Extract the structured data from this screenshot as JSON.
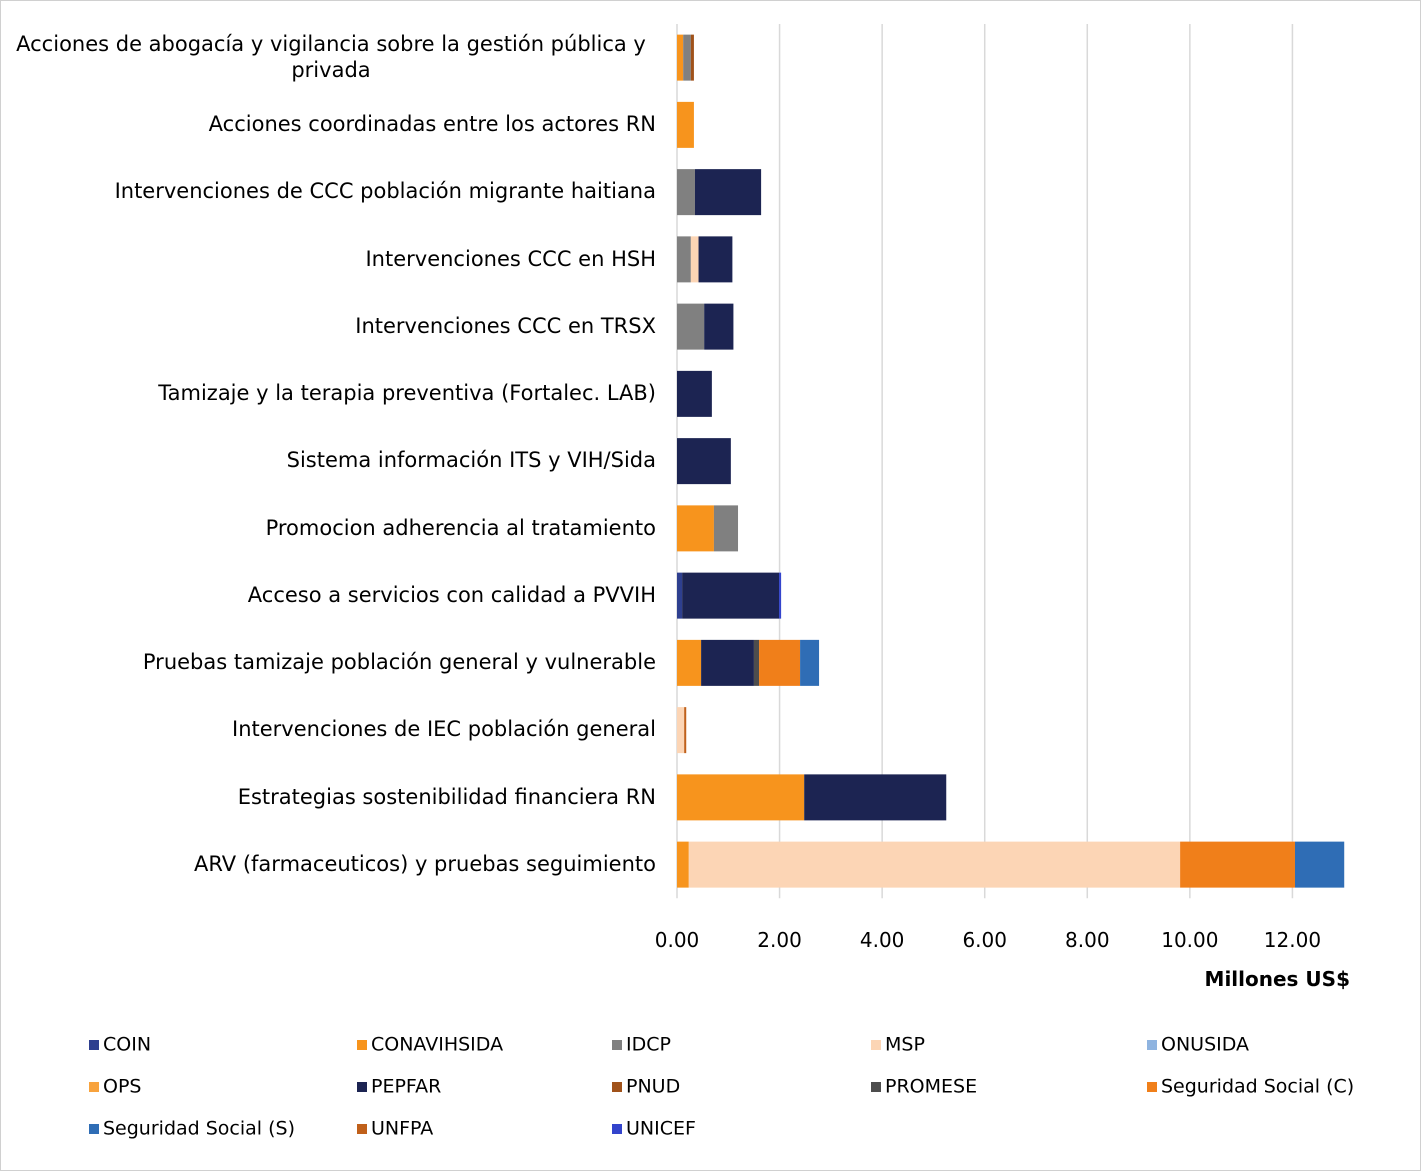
{
  "chart_data": {
    "type": "stacked_barh",
    "categories": [
      "Acciones de  abogacía y vigilancia sobre la gestión pública y privada",
      "Acciones coordinadas entre los actores RN",
      "Intervenciones de  CCC población migrante haitiana",
      "Intervenciones CCC en HSH",
      "Intervenciones CCC  en TRSX",
      "Tamizaje y la terapia preventiva (Fortalec. LAB)",
      "Sistema  información ITS y VIH/Sida",
      "Promocion adherencia al tratamiento",
      "Acceso a servicios con calidad a PVVIH",
      "Pruebas tamizaje población general  y vulnerable",
      "Intervenciones de IEC población general",
      "Estrategias sostenibilidad financiera RN",
      "ARV (farmaceuticos) y pruebas seguimiento"
    ],
    "series": [
      {
        "name": "COIN",
        "color": "#2e3f8f",
        "values": [
          0,
          0,
          0,
          0,
          0,
          0,
          0,
          0,
          0.1,
          0,
          0,
          0,
          0
        ]
      },
      {
        "name": "CONAVIHSIDA",
        "color": "#f7941d",
        "values": [
          0.12,
          0.33,
          0,
          0,
          0,
          0,
          0,
          0.72,
          0,
          0.47,
          0,
          2.48,
          0.23
        ]
      },
      {
        "name": "IDCP",
        "color": "#808080",
        "values": [
          0.15,
          0,
          0.35,
          0.27,
          0.53,
          0,
          0,
          0.47,
          0,
          0,
          0,
          0,
          0
        ]
      },
      {
        "name": "MSP",
        "color": "#fcd5b5",
        "values": [
          0,
          0,
          0,
          0.15,
          0,
          0,
          0,
          0,
          0,
          0,
          0.14,
          0,
          9.58
        ]
      },
      {
        "name": "ONUSIDA",
        "color": "#8fb4e0",
        "values": [
          0,
          0,
          0,
          0,
          0,
          0,
          0,
          0,
          0,
          0,
          0,
          0,
          0
        ]
      },
      {
        "name": "OPS",
        "color": "#f8a33d",
        "values": [
          0,
          0,
          0,
          0,
          0,
          0,
          0,
          0,
          0,
          0,
          0,
          0,
          0
        ]
      },
      {
        "name": "PEPFAR",
        "color": "#1c2452",
        "values": [
          0,
          0,
          1.29,
          0.66,
          0.57,
          0.68,
          1.05,
          0,
          1.89,
          1.03,
          0,
          2.77,
          0
        ]
      },
      {
        "name": "PNUD",
        "color": "#a0521a",
        "values": [
          0.06,
          0,
          0,
          0,
          0,
          0,
          0,
          0,
          0,
          0,
          0,
          0,
          0
        ]
      },
      {
        "name": "PROMESE",
        "color": "#4d4d4d",
        "values": [
          0,
          0,
          0,
          0,
          0,
          0,
          0,
          0,
          0,
          0.1,
          0,
          0,
          0
        ]
      },
      {
        "name": "Seguridad Social (C)",
        "color": "#f07f1a",
        "values": [
          0,
          0,
          0,
          0,
          0,
          0,
          0,
          0,
          0,
          0.8,
          0,
          0,
          2.24
        ]
      },
      {
        "name": "Seguridad Social (S)",
        "color": "#2f6db5",
        "values": [
          0,
          0,
          0,
          0,
          0,
          0,
          0,
          0,
          0,
          0.37,
          0,
          0,
          0.96
        ]
      },
      {
        "name": "UNFPA",
        "color": "#c0601a",
        "values": [
          0,
          0,
          0,
          0,
          0,
          0,
          0,
          0,
          0,
          0,
          0.04,
          0,
          0
        ]
      },
      {
        "name": "UNICEF",
        "color": "#3344cc",
        "values": [
          0,
          0,
          0,
          0,
          0,
          0,
          0,
          0,
          0.04,
          0,
          0,
          0,
          0
        ]
      }
    ],
    "xlim": [
      0,
      14
    ],
    "xticks": [
      {
        "value": 0,
        "label": "0.00"
      },
      {
        "value": 2,
        "label": "2.00"
      },
      {
        "value": 4,
        "label": "4.00"
      },
      {
        "value": 6,
        "label": "6.00"
      },
      {
        "value": 8,
        "label": "8.00"
      },
      {
        "value": 10,
        "label": "10.00"
      },
      {
        "value": 12,
        "label": "12.00"
      }
    ],
    "xlabel": "Millones US$",
    "grid": true
  }
}
